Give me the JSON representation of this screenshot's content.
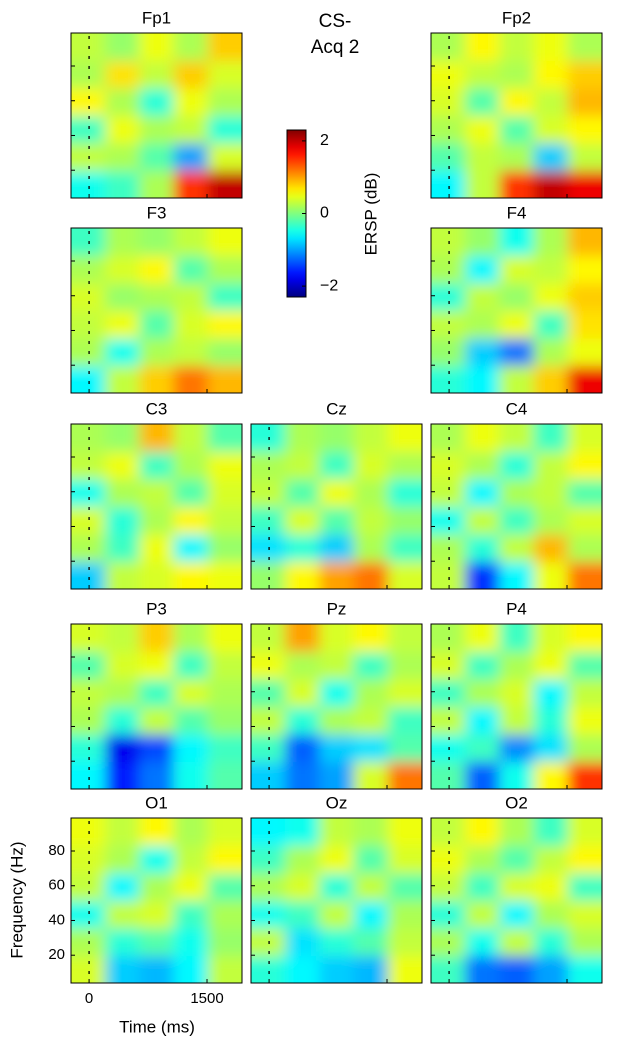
{
  "chart_data": {
    "type": "heatmap",
    "title": "CS-",
    "subtitle": "Acq 2",
    "xlabel": "Time (ms)",
    "ylabel": "Frequency (Hz)",
    "xlim": [
      -230,
      1945
    ],
    "xticks": [
      0,
      1500
    ],
    "ylim": [
      4,
      99
    ],
    "yticks": [
      20,
      40,
      60,
      80
    ],
    "colorbar": {
      "label": "ERSP (dB)",
      "clim": [
        -2.3,
        2.3
      ],
      "ticks": [
        {
          "value": -2,
          "label": "−2"
        },
        0,
        2
      ]
    },
    "panels": [
      {
        "title": "Fp1",
        "z": [
          [
            -0.5,
            -0.3,
            0.2,
            1.5,
            2.0
          ],
          [
            0.3,
            0.2,
            -0.2,
            -1,
            0.4
          ],
          [
            -0.3,
            0.5,
            0.2,
            0.3,
            -0.4
          ],
          [
            0.6,
            0.2,
            -0.4,
            0.5,
            0.2
          ],
          [
            0.2,
            0.7,
            0.3,
            0.8,
            0.4
          ],
          [
            0.3,
            0.1,
            0.5,
            0.2,
            0.8
          ]
        ]
      },
      {
        "title": "Fp2",
        "z": [
          [
            -0.6,
            0.3,
            1.5,
            2.0,
            1.8
          ],
          [
            -0.2,
            0.3,
            0.2,
            -0.8,
            0.3
          ],
          [
            0.2,
            0.5,
            -0.2,
            0.4,
            0.6
          ],
          [
            0.4,
            -0.2,
            0.6,
            0.3,
            0.9
          ],
          [
            0.5,
            0.3,
            0.2,
            0.6,
            0.8
          ],
          [
            0.2,
            0.6,
            0.3,
            0.5,
            0.2
          ]
        ]
      },
      {
        "title": "F3",
        "z": [
          [
            -0.6,
            0.3,
            0.8,
            1.2,
            0.9
          ],
          [
            0.2,
            -0.5,
            0.2,
            0.3,
            0.1
          ],
          [
            0.3,
            0.5,
            -0.2,
            0.4,
            0.6
          ],
          [
            0.4,
            0.1,
            0.2,
            0.3,
            -0.3
          ],
          [
            0.2,
            0.4,
            0.6,
            -0.2,
            0.2
          ],
          [
            -0.3,
            0.2,
            0.1,
            0.3,
            0.5
          ]
        ]
      },
      {
        "title": "F4",
        "z": [
          [
            -0.4,
            -0.6,
            0.3,
            0.8,
            1.8
          ],
          [
            0.1,
            -0.8,
            -1.2,
            0.2,
            0.5
          ],
          [
            0.3,
            0.2,
            0.5,
            -0.3,
            0.7
          ],
          [
            -0.4,
            0.3,
            0.1,
            0.5,
            0.8
          ],
          [
            0.2,
            -0.6,
            0.4,
            0.3,
            0.6
          ],
          [
            0.3,
            0.1,
            -0.5,
            0.2,
            0.9
          ]
        ]
      },
      {
        "title": "C3",
        "z": [
          [
            -0.8,
            0.3,
            0.4,
            0.6,
            0.5
          ],
          [
            0.2,
            -0.3,
            0.5,
            -0.6,
            0.1
          ],
          [
            0.4,
            -0.4,
            0.2,
            0.6,
            0.3
          ],
          [
            -0.5,
            0.2,
            0.3,
            -0.2,
            0.4
          ],
          [
            0.3,
            0.5,
            -0.3,
            0.2,
            0.5
          ],
          [
            0.2,
            0.1,
            0.9,
            0.3,
            -0.2
          ]
        ]
      },
      {
        "title": "Cz",
        "z": [
          [
            0.1,
            0.6,
            1.0,
            1.2,
            0.4
          ],
          [
            -0.7,
            -0.4,
            -0.8,
            0.2,
            -0.3
          ],
          [
            -0.3,
            0.4,
            -0.2,
            0.3,
            0.1
          ],
          [
            0.3,
            -0.2,
            0.5,
            0.2,
            -0.4
          ],
          [
            0.2,
            0.3,
            -0.3,
            0.4,
            0.2
          ],
          [
            -0.4,
            0.2,
            0.1,
            0.3,
            0.5
          ]
        ]
      },
      {
        "title": "C4",
        "z": [
          [
            0.3,
            -1.5,
            -0.6,
            0.5,
            1.2
          ],
          [
            0.2,
            -0.4,
            0.3,
            0.9,
            0.2
          ],
          [
            -0.5,
            0.3,
            -0.3,
            0.2,
            0.4
          ],
          [
            0.3,
            -0.6,
            0.2,
            0.3,
            -0.2
          ],
          [
            0.4,
            0.2,
            -0.4,
            0.3,
            0.6
          ],
          [
            0.2,
            0.5,
            0.3,
            -0.3,
            0.4
          ]
        ]
      },
      {
        "title": "P3",
        "z": [
          [
            -0.6,
            -1.6,
            -1.2,
            -0.5,
            -0.2
          ],
          [
            -0.4,
            -1.8,
            -1.4,
            -0.6,
            -0.3
          ],
          [
            0.2,
            -0.4,
            0.3,
            -0.2,
            0.1
          ],
          [
            0.3,
            0.2,
            -0.3,
            0.4,
            0.2
          ],
          [
            -0.2,
            0.4,
            0.5,
            -0.3,
            0.3
          ],
          [
            0.4,
            0.3,
            0.8,
            0.2,
            0.5
          ]
        ]
      },
      {
        "title": "Pz",
        "z": [
          [
            -0.8,
            -1.2,
            -1.0,
            0.4,
            1.2
          ],
          [
            -0.3,
            -1.3,
            -0.8,
            -0.7,
            -0.2
          ],
          [
            0.3,
            -0.4,
            0.2,
            0.3,
            -0.3
          ],
          [
            -0.2,
            0.4,
            -0.5,
            0.2,
            0.4
          ],
          [
            0.5,
            0.2,
            0.3,
            -0.3,
            0.2
          ],
          [
            0.3,
            1.0,
            0.4,
            0.6,
            0.3
          ]
        ]
      },
      {
        "title": "P4",
        "z": [
          [
            -0.2,
            -1.3,
            -0.5,
            0.6,
            1.5
          ],
          [
            -0.5,
            -0.3,
            -1.1,
            -0.7,
            0.2
          ],
          [
            0.3,
            -0.6,
            0.3,
            -0.4,
            0.5
          ],
          [
            -0.3,
            0.2,
            0.4,
            -0.6,
            0.3
          ],
          [
            0.4,
            -0.3,
            0.2,
            0.5,
            -0.2
          ],
          [
            0.2,
            0.5,
            -0.3,
            0.4,
            0.6
          ]
        ]
      },
      {
        "title": "O1",
        "z": [
          [
            0.4,
            -0.8,
            -0.9,
            -0.6,
            0.3
          ],
          [
            0.2,
            -0.4,
            -0.2,
            -0.5,
            0.1
          ],
          [
            -0.5,
            0.3,
            0.4,
            -0.3,
            0.2
          ],
          [
            0.3,
            -0.6,
            0.2,
            0.5,
            -0.2
          ],
          [
            0.4,
            0.2,
            -0.5,
            0.3,
            0.6
          ],
          [
            0.5,
            0.3,
            0.6,
            0.2,
            0.4
          ]
        ]
      },
      {
        "title": "Oz",
        "z": [
          [
            -0.4,
            -0.6,
            -0.8,
            -0.9,
            0.5
          ],
          [
            0.3,
            -0.7,
            -0.4,
            -0.2,
            0.3
          ],
          [
            -0.5,
            -0.3,
            0.3,
            -0.6,
            0.2
          ],
          [
            0.2,
            0.4,
            -0.4,
            0.3,
            -0.2
          ],
          [
            -0.3,
            0.2,
            0.5,
            -0.2,
            0.4
          ],
          [
            -0.6,
            -0.5,
            0.3,
            0.2,
            0.5
          ]
        ]
      },
      {
        "title": "O2",
        "z": [
          [
            -0.3,
            -1.2,
            -1.3,
            -1.0,
            -0.5
          ],
          [
            0.2,
            -0.5,
            0.3,
            -0.4,
            0.2
          ],
          [
            -0.4,
            0.3,
            -0.6,
            0.2,
            0.4
          ],
          [
            0.3,
            -0.3,
            0.4,
            0.5,
            -0.3
          ],
          [
            0.5,
            0.2,
            -0.2,
            0.3,
            0.6
          ],
          [
            0.3,
            0.6,
            0.2,
            -0.3,
            0.4
          ]
        ]
      }
    ]
  }
}
